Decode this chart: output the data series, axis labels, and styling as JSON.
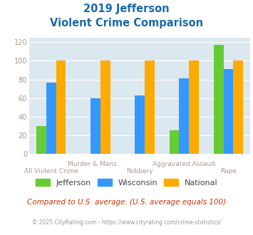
{
  "title_line1": "2019 Jefferson",
  "title_line2": "Violent Crime Comparison",
  "categories": [
    "All Violent Crime",
    "Murder & Mans...",
    "Robbery",
    "Aggravated Assault",
    "Rape"
  ],
  "series": {
    "Jefferson": [
      30,
      0,
      0,
      25,
      117
    ],
    "Wisconsin": [
      77,
      60,
      63,
      81,
      91
    ],
    "National": [
      100,
      100,
      100,
      100,
      100
    ]
  },
  "colors": {
    "Jefferson": "#66cc33",
    "Wisconsin": "#3399ff",
    "National": "#ffaa00"
  },
  "ylim": [
    0,
    125
  ],
  "yticks": [
    0,
    20,
    40,
    60,
    80,
    100,
    120
  ],
  "background_color": "#dce8ef",
  "title_color": "#1a6aaa",
  "axis_label_color": "#aa9988",
  "legend_label_color": "#444444",
  "footer_text": "Compared to U.S. average. (U.S. average equals 100)",
  "footer_color": "#cc3300",
  "copyright_text": "© 2025 CityRating.com - https://www.cityrating.com/crime-statistics/",
  "copyright_color": "#999999",
  "bar_width": 0.22
}
